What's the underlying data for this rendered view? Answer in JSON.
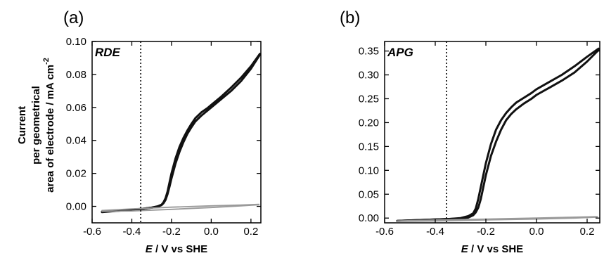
{
  "ylabel_lines": [
    "Current",
    "per geometrical",
    "area of electrode / mA cm",
    "-2"
  ],
  "xlabel": {
    "symbol": "E",
    "rest": " / V vs SHE"
  },
  "chart_data": [
    {
      "type": "line",
      "panel_label": "(a)",
      "inset_title": "RDE",
      "xlim": [
        -0.6,
        0.25
      ],
      "ylim": [
        -0.01,
        0.1
      ],
      "xticks": [
        -0.6,
        -0.4,
        -0.2,
        0.0,
        0.2
      ],
      "xtick_labels": [
        "-0.6",
        "-0.4",
        "-0.2",
        "0.0",
        "0.2"
      ],
      "yticks": [
        0.0,
        0.02,
        0.04,
        0.06,
        0.08,
        0.1
      ],
      "ytick_labels": [
        "0.00",
        "0.02",
        "0.04",
        "0.06",
        "0.08",
        "0.10"
      ],
      "vline_x": -0.355,
      "grid": false,
      "series": [
        {
          "color": "#111111",
          "forward": {
            "x": [
              -0.55,
              -0.45,
              -0.35,
              -0.3,
              -0.27,
              -0.25,
              -0.24,
              -0.23,
              -0.22,
              -0.21,
              -0.2,
              -0.18,
              -0.16,
              -0.14,
              -0.12,
              -0.1,
              -0.08,
              -0.05,
              -0.02,
              0.0,
              0.05,
              0.1,
              0.15,
              0.2,
              0.245
            ],
            "y": [
              -0.0035,
              -0.0025,
              -0.0015,
              -0.0008,
              0.0,
              0.001,
              0.0025,
              0.005,
              0.009,
              0.0145,
              0.02,
              0.029,
              0.036,
              0.0415,
              0.046,
              0.05,
              0.0535,
              0.057,
              0.0595,
              0.0615,
              0.0665,
              0.072,
              0.078,
              0.085,
              0.0925
            ]
          },
          "backward": {
            "x": [
              0.245,
              0.2,
              0.15,
              0.1,
              0.05,
              0.0,
              -0.02,
              -0.05,
              -0.08,
              -0.1,
              -0.12,
              -0.14,
              -0.16,
              -0.18,
              -0.2,
              -0.21,
              -0.22,
              -0.23,
              -0.24,
              -0.25,
              -0.27,
              -0.3,
              -0.35,
              -0.45,
              -0.55
            ],
            "y": [
              0.092,
              0.0835,
              0.076,
              0.07,
              0.065,
              0.06,
              0.058,
              0.055,
              0.0515,
              0.048,
              0.044,
              0.039,
              0.033,
              0.026,
              0.017,
              0.012,
              0.0075,
              0.004,
              0.002,
              0.0008,
              -0.0002,
              -0.0008,
              -0.0015,
              -0.0025,
              -0.0032
            ]
          }
        },
        {
          "color": "#9a9a9a",
          "forward": {
            "x": [
              -0.55,
              -0.4,
              -0.2,
              0.0,
              0.15,
              0.24
            ],
            "y": [
              -0.0025,
              -0.0015,
              -0.0005,
              0.0003,
              0.0008,
              0.0012
            ]
          },
          "backward": {
            "x": [
              0.24,
              0.15,
              0.0,
              -0.2,
              -0.4,
              -0.55
            ],
            "y": [
              0.001,
              0.0003,
              -0.0007,
              -0.0018,
              -0.0028,
              -0.003
            ]
          }
        }
      ]
    },
    {
      "type": "line",
      "panel_label": "(b)",
      "inset_title": "APG",
      "xlim": [
        -0.6,
        0.25
      ],
      "ylim": [
        -0.01,
        0.37
      ],
      "xticks": [
        -0.6,
        -0.4,
        -0.2,
        0.0,
        0.2
      ],
      "xtick_labels": [
        "-0.6",
        "-0.4",
        "-0.2",
        "0.0",
        "0.2"
      ],
      "yticks": [
        0.0,
        0.05,
        0.1,
        0.15,
        0.2,
        0.25,
        0.3,
        0.35
      ],
      "ytick_labels": [
        "0.00",
        "0.05",
        "0.10",
        "0.15",
        "0.20",
        "0.25",
        "0.30",
        "0.35"
      ],
      "vline_x": -0.355,
      "grid": false,
      "series": [
        {
          "color": "#111111",
          "forward": {
            "x": [
              -0.55,
              -0.45,
              -0.35,
              -0.3,
              -0.27,
              -0.25,
              -0.24,
              -0.23,
              -0.22,
              -0.21,
              -0.2,
              -0.18,
              -0.16,
              -0.14,
              -0.12,
              -0.1,
              -0.08,
              -0.05,
              -0.02,
              0.0,
              0.05,
              0.1,
              0.15,
              0.2,
              0.245
            ],
            "y": [
              -0.006,
              -0.004,
              -0.002,
              0.0,
              0.004,
              0.01,
              0.02,
              0.04,
              0.065,
              0.09,
              0.115,
              0.155,
              0.185,
              0.205,
              0.22,
              0.232,
              0.242,
              0.252,
              0.262,
              0.27,
              0.285,
              0.3,
              0.318,
              0.338,
              0.355
            ]
          },
          "backward": {
            "x": [
              0.245,
              0.2,
              0.15,
              0.1,
              0.05,
              0.0,
              -0.02,
              -0.05,
              -0.08,
              -0.1,
              -0.12,
              -0.14,
              -0.16,
              -0.18,
              -0.2,
              -0.21,
              -0.22,
              -0.23,
              -0.24,
              -0.25,
              -0.27,
              -0.3,
              -0.35,
              -0.45,
              -0.55
            ],
            "y": [
              0.352,
              0.328,
              0.305,
              0.288,
              0.273,
              0.258,
              0.25,
              0.24,
              0.228,
              0.218,
              0.205,
              0.185,
              0.16,
              0.13,
              0.09,
              0.065,
              0.04,
              0.022,
              0.012,
              0.006,
              0.001,
              -0.001,
              -0.002,
              -0.004,
              -0.006
            ]
          }
        },
        {
          "color": "#9a9a9a",
          "forward": {
            "x": [
              -0.55,
              -0.4,
              -0.2,
              0.0,
              0.15,
              0.24
            ],
            "y": [
              -0.006,
              -0.004,
              -0.002,
              0.0,
              0.002,
              0.003
            ]
          },
          "backward": {
            "x": [
              0.24,
              0.15,
              0.0,
              -0.2,
              -0.4,
              -0.55
            ],
            "y": [
              0.002,
              0.0,
              -0.002,
              -0.004,
              -0.006,
              -0.007
            ]
          }
        }
      ]
    }
  ]
}
